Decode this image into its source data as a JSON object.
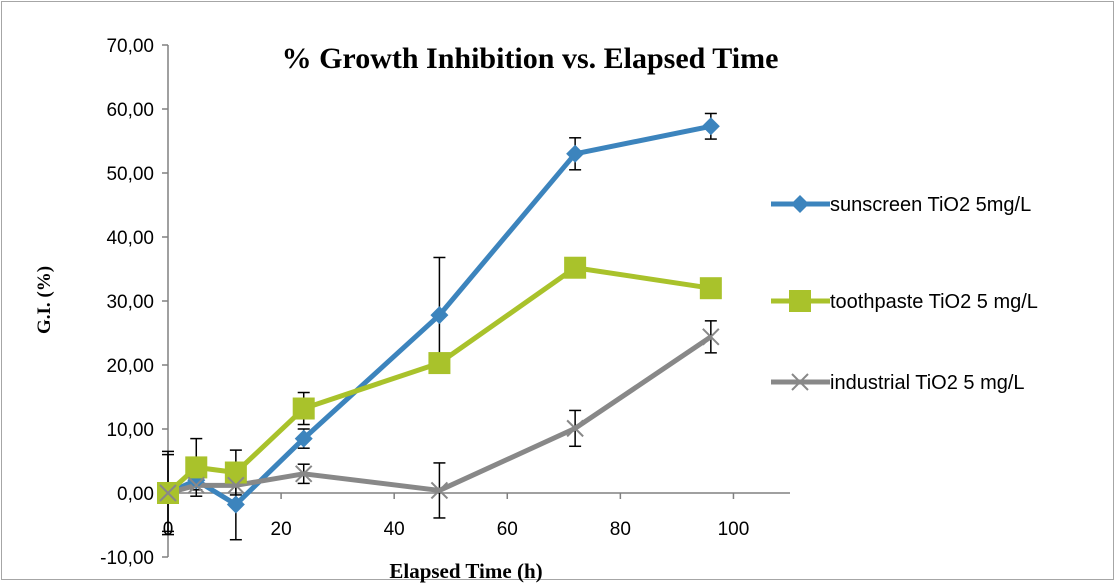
{
  "chart_data": {
    "type": "line",
    "title": "% Growth Inhibition vs. Elapsed Time",
    "xlabel": "Elapsed Time (h)",
    "ylabel": "G.I. (%)",
    "xlim": [
      0,
      110
    ],
    "ylim": [
      -10,
      70
    ],
    "x_ticks": [
      "0",
      "20",
      "40",
      "60",
      "80",
      "100"
    ],
    "y_ticks": [
      "-10,00",
      "0,00",
      "10,00",
      "20,00",
      "30,00",
      "40,00",
      "50,00",
      "60,00",
      "70,00"
    ],
    "grid": false,
    "legend_position": "right",
    "series": [
      {
        "name": "sunscreen TiO2 5mg/L",
        "color": "#3c84bd",
        "marker": "diamond",
        "x": [
          0,
          5,
          12,
          24,
          48,
          72,
          96
        ],
        "y": [
          0,
          2,
          -1.8,
          8.5,
          27.8,
          53,
          57.3
        ],
        "err": [
          6,
          1.5,
          5.5,
          1.5,
          9,
          2.5,
          2
        ]
      },
      {
        "name": "toothpaste TiO2 5 mg/L",
        "color": "#a9c22b",
        "marker": "square",
        "x": [
          0,
          5,
          12,
          24,
          48,
          72,
          96
        ],
        "y": [
          0,
          4,
          3.2,
          13.2,
          20.3,
          35.2,
          32
        ],
        "err": [
          6.5,
          4.5,
          3.5,
          2.5,
          0,
          0,
          0
        ]
      },
      {
        "name": "industrial TiO2 5 mg/L",
        "color": "#888888",
        "marker": "x",
        "x": [
          0,
          5,
          12,
          24,
          48,
          72,
          96
        ],
        "y": [
          0,
          1.2,
          1.2,
          3,
          0.4,
          10.1,
          24.4
        ],
        "err": [
          0,
          0,
          0,
          1.5,
          4.3,
          2.8,
          2.5
        ]
      }
    ]
  }
}
